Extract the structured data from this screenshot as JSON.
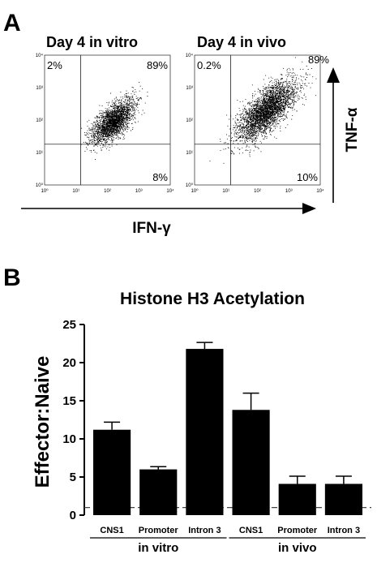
{
  "panel_a_letter": "A",
  "panel_b_letter": "B",
  "colors": {
    "ink": "#000000",
    "bar": "#000000",
    "dashed": "#444444"
  },
  "chart_data": [
    {
      "type": "scatter",
      "title": "Day 4 in vitro",
      "scale": "log",
      "xlim": [
        1,
        10000
      ],
      "ylim": [
        1,
        10000
      ],
      "x_ticks": [
        "10⁰",
        "10¹",
        "10²",
        "10³",
        "10⁴"
      ],
      "y_ticks": [
        "10⁰",
        "10¹",
        "10²",
        "10³",
        "10⁴"
      ],
      "gates": {
        "x": 14,
        "y": 18
      },
      "quadrants": {
        "upper_left": "2%",
        "upper_right": "89%",
        "lower_right": "8%"
      },
      "cloud": {
        "x_center": 150,
        "y_center": 90,
        "spread_log": 0.33,
        "correlation": 0.65,
        "events": 2600
      }
    },
    {
      "type": "scatter",
      "title": "Day 4 in vivo",
      "scale": "log",
      "xlim": [
        1,
        10000
      ],
      "ylim": [
        1,
        10000
      ],
      "x_ticks": [
        "10⁰",
        "10¹",
        "10²",
        "10³",
        "10⁴"
      ],
      "y_ticks": [
        "10⁰",
        "10¹",
        "10²",
        "10³",
        "10⁴"
      ],
      "gates": {
        "x": 14,
        "y": 18
      },
      "quadrants": {
        "upper_left": "0.2%",
        "upper_right": "89%",
        "lower_right": "10%"
      },
      "cloud": {
        "x_center": 200,
        "y_center": 200,
        "spread_log": 0.45,
        "correlation": 0.7,
        "events": 3600
      }
    },
    {
      "type": "bar",
      "title": "Histone H3 Acetylation",
      "ylabel": "Effector:Naive",
      "ylim": [
        0,
        25
      ],
      "yticks": [
        0,
        5,
        10,
        15,
        20,
        25
      ],
      "categories": [
        "CNS1",
        "Promoter",
        "Intron 3",
        "CNS1",
        "Promoter",
        "Intron 3"
      ],
      "values": [
        11.2,
        6.0,
        21.8,
        13.8,
        4.1,
        4.1
      ],
      "errors": [
        1.0,
        0.35,
        0.85,
        2.2,
        1.0,
        1.0
      ],
      "groups": [
        {
          "label": "in vitro",
          "span": [
            0,
            2
          ]
        },
        {
          "label": "in vivo",
          "span": [
            3,
            5
          ]
        }
      ],
      "reference_line": 1
    }
  ],
  "axes_a": {
    "xlabel": "IFN-γ",
    "ylabel": "TNF-α"
  }
}
